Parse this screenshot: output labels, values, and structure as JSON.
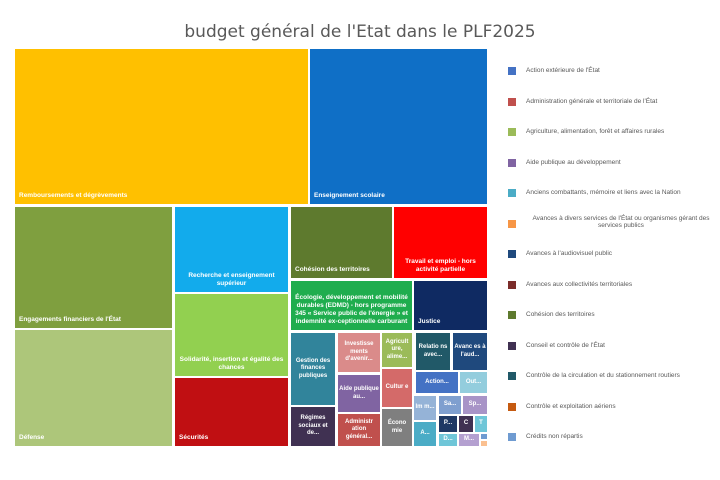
{
  "chart_data": {
    "type": "treemap",
    "title": "budget général de l'Etat dans le PLF2025",
    "legend_position": "right",
    "legend": [
      {
        "label": "Action extérieure de l'État",
        "color": "#4472C4"
      },
      {
        "label": "Administration générale et territoriale de l'État",
        "color": "#C0504D"
      },
      {
        "label": "Agriculture, alimentation, forêt et affaires rurales",
        "color": "#9BBB59"
      },
      {
        "label": "Aide publique au développement",
        "color": "#8064A2"
      },
      {
        "label": "Anciens combattants, mémoire et liens avec la Nation",
        "color": "#4BACC6"
      },
      {
        "label": "Avances à divers services de l'État ou organismes gérant des services publics",
        "color": "#F79646"
      },
      {
        "label": "Avances à l'audiovisuel public",
        "color": "#1F497D"
      },
      {
        "label": "Avances aux collectivités territoriales",
        "color": "#7B2C2A"
      },
      {
        "label": "Cohésion des territoires",
        "color": "#5E7A2E"
      },
      {
        "label": "Conseil et contrôle de l'État",
        "color": "#403152"
      },
      {
        "label": "Contrôle de la circulation et du stationnement routiers",
        "color": "#215968"
      },
      {
        "label": "Contrôle et exploitation aériens",
        "color": "#C55A11"
      },
      {
        "label": "Crédits non répartis",
        "color": "#6F9BD1"
      }
    ],
    "tiles": [
      {
        "label": "Remboursements et dégrèvements",
        "color": "#FFC000"
      },
      {
        "label": "Enseignement scolaire",
        "color": "#0F6FC6"
      },
      {
        "label": "Engagements financiers de l'État",
        "color": "#7F9F3F"
      },
      {
        "label": "Défense",
        "color": "#ADC67A"
      },
      {
        "label": "Recherche et enseignement supérieur",
        "color": "#12ABEC"
      },
      {
        "label": "Solidarité, insertion et égalité des chances",
        "color": "#92D050"
      },
      {
        "label": "Sécurités",
        "color": "#C00F12"
      },
      {
        "label": "Cohésion des territoires",
        "color": "#5E7A2E"
      },
      {
        "label": "Travail et emploi - hors activité partielle",
        "color": "#FF0000"
      },
      {
        "label": "Écologie, développement et mobilité durables (EDMD) - hors programme 345 « Service public de l'énergie » et indemnité ex-ceptionnelle carburant",
        "color": "#1FAD4E"
      },
      {
        "label": "Justice",
        "color": "#0F2A62"
      },
      {
        "label": "Gestion des finances publiques",
        "color": "#31849B"
      },
      {
        "label": "Régimes sociaux et de...",
        "color": "#403152"
      },
      {
        "label": "Investisse ments d'avenir...",
        "color": "#DA8B8A"
      },
      {
        "label": "Aide publique au...",
        "color": "#8064A2"
      },
      {
        "label": "Administr ation général...",
        "color": "#C0504D"
      },
      {
        "label": "Agricult ure, alime...",
        "color": "#9BBB59"
      },
      {
        "label": "Cultur e",
        "color": "#D46A69"
      },
      {
        "label": "Écono mie",
        "color": "#7F7F7F"
      },
      {
        "label": "Relatio ns avec...",
        "color": "#215968"
      },
      {
        "label": "Avanc es à l'aud...",
        "color": "#1F497D"
      },
      {
        "label": "Action...",
        "color": "#4472C4"
      },
      {
        "label": "Out...",
        "color": "#93CDDD"
      },
      {
        "label": "Im m...",
        "color": "#95B3D7"
      },
      {
        "label": "Sa...",
        "color": "#7F9FCF"
      },
      {
        "label": "Sp...",
        "color": "#A894C7"
      },
      {
        "label": "A...",
        "color": "#4BACC6"
      },
      {
        "label": "P...",
        "color": "#1F3864"
      },
      {
        "label": "C",
        "color": "#403152"
      },
      {
        "label": "T",
        "color": "#6FC6D8"
      },
      {
        "label": "D...",
        "color": "#6FC6D8"
      },
      {
        "label": "M...",
        "color": "#B4A0D0"
      },
      {
        "label": "",
        "color": "#6F9BD1"
      },
      {
        "label": "",
        "color": "#FAC090"
      }
    ]
  }
}
